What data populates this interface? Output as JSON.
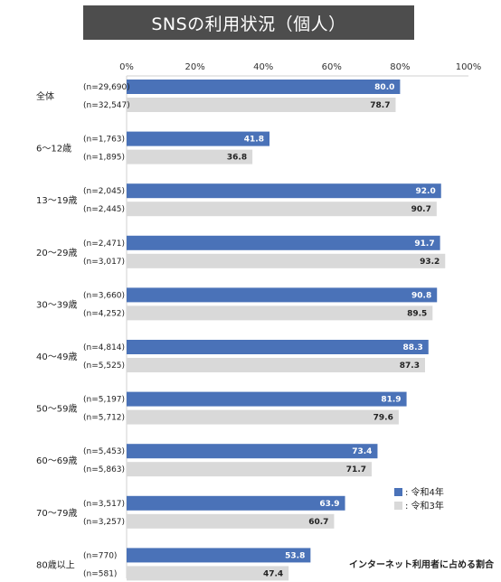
{
  "title": "SNSの利用状況（個人）",
  "chart_data": {
    "type": "bar",
    "orientation": "horizontal",
    "xlim": [
      0,
      100
    ],
    "x_ticks": [
      "0%",
      "20%",
      "40%",
      "60%",
      "80%",
      "100%"
    ],
    "categories": [
      "全体",
      "6～12歳",
      "13～19歳",
      "20～29歳",
      "30～39歳",
      "40～49歳",
      "50～59歳",
      "60～69歳",
      "70～79歳",
      "80歳以上"
    ],
    "series": [
      {
        "name": "令和4年",
        "color": "#4a72b8",
        "values": [
          80.0,
          41.8,
          92.0,
          91.7,
          90.8,
          88.3,
          81.9,
          73.4,
          63.9,
          53.8
        ],
        "labels": [
          "80.0",
          "41.8",
          "92.0",
          "91.7",
          "90.8",
          "88.3",
          "81.9",
          "73.4",
          "63.9",
          "53.8"
        ],
        "n": [
          "(n=29,690)",
          "(n=1,763)",
          "(n=2,045)",
          "(n=2,471)",
          "(n=3,660)",
          "(n=4,814)",
          "(n=5,197)",
          "(n=5,453)",
          "(n=3,517)",
          "(n=770)"
        ]
      },
      {
        "name": "令和3年",
        "color": "#d9d9d9",
        "values": [
          78.7,
          36.8,
          90.7,
          93.2,
          89.5,
          87.3,
          79.6,
          71.7,
          60.7,
          47.4
        ],
        "labels": [
          "78.7",
          "36.8",
          "90.7",
          "93.2",
          "89.5",
          "87.3",
          "79.6",
          "71.7",
          "60.7",
          "47.4"
        ],
        "n": [
          "(n=32,547)",
          "(n=1,895)",
          "(n=2,445)",
          "(n=3,017)",
          "(n=4,252)",
          "(n=5,525)",
          "(n=5,712)",
          "(n=5,863)",
          "(n=3,257)",
          "(n=581)"
        ]
      }
    ],
    "legend": {
      "position": "lower-right",
      "items": [
        ": 令和4年",
        ": 令和3年"
      ]
    },
    "note": "インターネット利用者に占める割合"
  }
}
